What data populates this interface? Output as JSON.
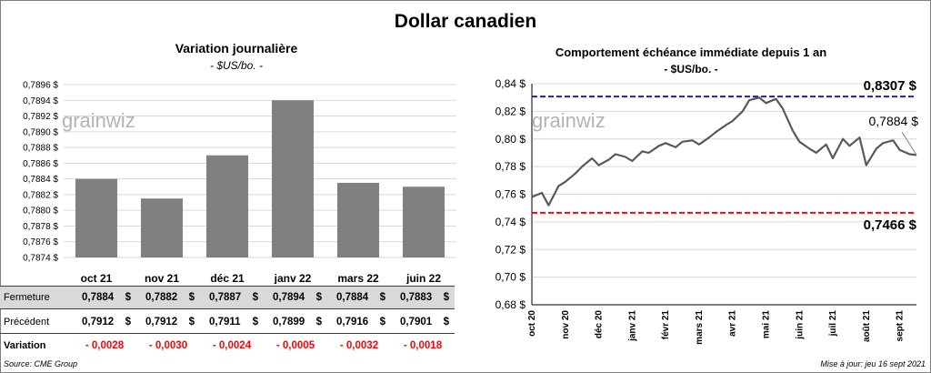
{
  "main_title": "Dollar canadien",
  "left": {
    "title": "Variation  journalière",
    "unit": "- $US/bo. -",
    "watermark": "grainwiz"
  },
  "right": {
    "title": "Comportement échéance immédiate depuis 1 an",
    "unit": "- $US/bo. -",
    "watermark": "grainwiz",
    "high_label": "0,8307 $",
    "low_label": "0,7466 $",
    "last_label": "0,7884 $"
  },
  "table": {
    "row_labels": [
      "Fermeture",
      "Précédent",
      "Variation"
    ],
    "fermeture": [
      "0,7884",
      "0,7882",
      "0,7887",
      "0,7894",
      "0,7884",
      "0,7883"
    ],
    "precedent": [
      "0,7912",
      "0,7912",
      "0,7911",
      "0,7899",
      "0,7916",
      "0,7901"
    ],
    "variation": [
      "- 0,0028",
      "- 0,0030",
      "- 0,0024",
      "- 0,0005",
      "- 0,0032",
      "- 0,0018"
    ],
    "currency": "$"
  },
  "footer": {
    "source": "Source: CME Group",
    "updated": "Mise à jour: jeu 16 sept 2021"
  },
  "colors": {
    "bar": "#808080",
    "line": "#595959",
    "high": "#1f1fa8",
    "low": "#ff0000",
    "grid": "#d9d9d9"
  },
  "chart_data": [
    {
      "type": "bar",
      "title": "Variation  journalière",
      "ylabel": "- $US/bo. -",
      "categories": [
        "oct 21",
        "nov 21",
        "déc 21",
        "janv 22",
        "mars 22",
        "juin 22"
      ],
      "values": [
        0.7884,
        0.78815,
        0.7887,
        0.7894,
        0.78835,
        0.7883
      ],
      "ylim": [
        0.7874,
        0.7896
      ],
      "yticks": [
        "0,7874 $",
        "0,7876 $",
        "0,7878 $",
        "0,7880 $",
        "0,7882 $",
        "0,7884 $",
        "0,7886 $",
        "0,7888 $",
        "0,7890 $",
        "0,7892 $",
        "0,7894 $",
        "0,7896 $"
      ],
      "grid": true
    },
    {
      "type": "line",
      "title": "Comportement échéance immédiate depuis 1 an",
      "ylabel": "- $US/bo. -",
      "ylim": [
        0.68,
        0.84
      ],
      "yticks": [
        "0,68 $",
        "0,70 $",
        "0,72 $",
        "0,74 $",
        "0,76 $",
        "0,78 $",
        "0,80 $",
        "0,82 $",
        "0,84 $"
      ],
      "xticks": [
        "oct 20",
        "nov 20",
        "déc 20",
        "janv 21",
        "févr 21",
        "mars 21",
        "avr 21",
        "mai 21",
        "juin 21",
        "juil 21",
        "août 21",
        "sept 21"
      ],
      "x": [
        0.0,
        0.3,
        0.5,
        0.8,
        1.0,
        1.3,
        1.5,
        1.8,
        2.0,
        2.3,
        2.5,
        2.8,
        3.0,
        3.3,
        3.5,
        3.8,
        4.0,
        4.3,
        4.5,
        4.8,
        5.0,
        5.3,
        5.5,
        5.8,
        6.0,
        6.3,
        6.5,
        6.8,
        7.0,
        7.3,
        7.5,
        7.8,
        8.0,
        8.3,
        8.5,
        8.8,
        9.0,
        9.3,
        9.5,
        9.8,
        10.0,
        10.3,
        10.5,
        10.8,
        11.0,
        11.3,
        11.5
      ],
      "values": [
        0.758,
        0.761,
        0.752,
        0.766,
        0.769,
        0.775,
        0.78,
        0.786,
        0.781,
        0.785,
        0.789,
        0.787,
        0.784,
        0.791,
        0.79,
        0.795,
        0.797,
        0.794,
        0.798,
        0.799,
        0.796,
        0.801,
        0.805,
        0.81,
        0.813,
        0.82,
        0.828,
        0.83,
        0.826,
        0.829,
        0.822,
        0.806,
        0.798,
        0.793,
        0.79,
        0.796,
        0.786,
        0.8,
        0.795,
        0.801,
        0.781,
        0.793,
        0.797,
        0.799,
        0.792,
        0.789,
        0.7884
      ],
      "hlines": [
        {
          "label": "0,8307 $",
          "value": 0.8307
        },
        {
          "label": "0,7466 $",
          "value": 0.7466
        }
      ],
      "last_label": "0,7884 $",
      "grid": true
    }
  ]
}
